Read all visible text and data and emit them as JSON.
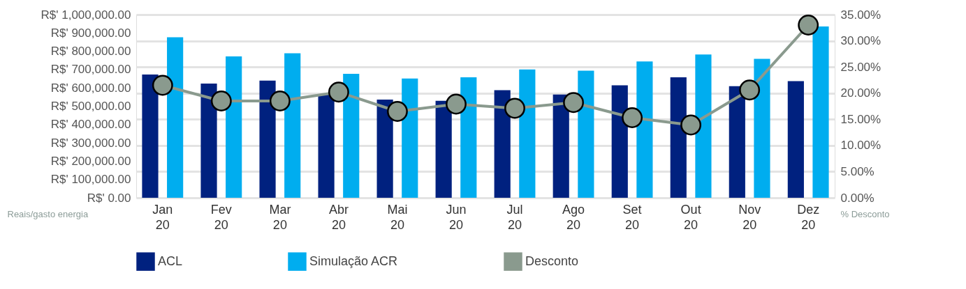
{
  "chart_data": {
    "type": "bar",
    "ylabel": "Reais/gasto energia",
    "y2label": "% Desconto",
    "categories": [
      "Jan 20",
      "Fev 20",
      "Mar 20",
      "Abr 20",
      "Mai 20",
      "Jun 20",
      "Jul 20",
      "Ago 20",
      "Set 20",
      "Out 20",
      "Nov 20",
      "Dez 20"
    ],
    "series": [
      {
        "name": "ACL",
        "color": "#00217f",
        "values": [
          673000,
          624000,
          640000,
          563000,
          536000,
          529000,
          587000,
          564000,
          614000,
          658000,
          609000,
          637000
        ]
      },
      {
        "name": "Simulação ACR",
        "color": "#00adef",
        "values": [
          876000,
          772000,
          789000,
          677000,
          651000,
          658000,
          701000,
          694000,
          744000,
          782000,
          759000,
          935000
        ]
      },
      {
        "name": "Desconto",
        "type": "line",
        "axis": "y2",
        "color": "#8a9a8e",
        "values": [
          21.5,
          18.5,
          18.5,
          20.2,
          16.5,
          17.9,
          17.1,
          18.2,
          15.3,
          13.9,
          20.6,
          33.0
        ]
      }
    ],
    "ylim": [
      0,
      1000000
    ],
    "yticks": [
      {
        "value": 0,
        "label": "R$' 0.00"
      },
      {
        "value": 100000,
        "label": "R$' 100,000.00"
      },
      {
        "value": 200000,
        "label": "R$' 200,000.00"
      },
      {
        "value": 300000,
        "label": "R$' 300,000.00"
      },
      {
        "value": 400000,
        "label": "R$' 400,000.00"
      },
      {
        "value": 500000,
        "label": "R$' 500,000.00"
      },
      {
        "value": 600000,
        "label": "R$' 600,000.00"
      },
      {
        "value": 700000,
        "label": "R$' 700,000.00"
      },
      {
        "value": 800000,
        "label": "R$' 800,000.00"
      },
      {
        "value": 900000,
        "label": "R$' 900,000.00"
      },
      {
        "value": 1000000,
        "label": "R$' 1,000,000.00"
      }
    ],
    "y2lim": [
      0,
      35
    ],
    "y2ticks": [
      {
        "value": 0,
        "label": "0.00%"
      },
      {
        "value": 5,
        "label": "5.00%"
      },
      {
        "value": 10,
        "label": "10.00%"
      },
      {
        "value": 15,
        "label": "15.00%"
      },
      {
        "value": 20,
        "label": "20.00%"
      },
      {
        "value": 25,
        "label": "25.00%"
      },
      {
        "value": 30,
        "label": "30.00%"
      },
      {
        "value": 35,
        "label": "35.00%"
      }
    ],
    "grid": "y2",
    "legend": "bottom",
    "marker": "circle",
    "line_style": "solid"
  }
}
